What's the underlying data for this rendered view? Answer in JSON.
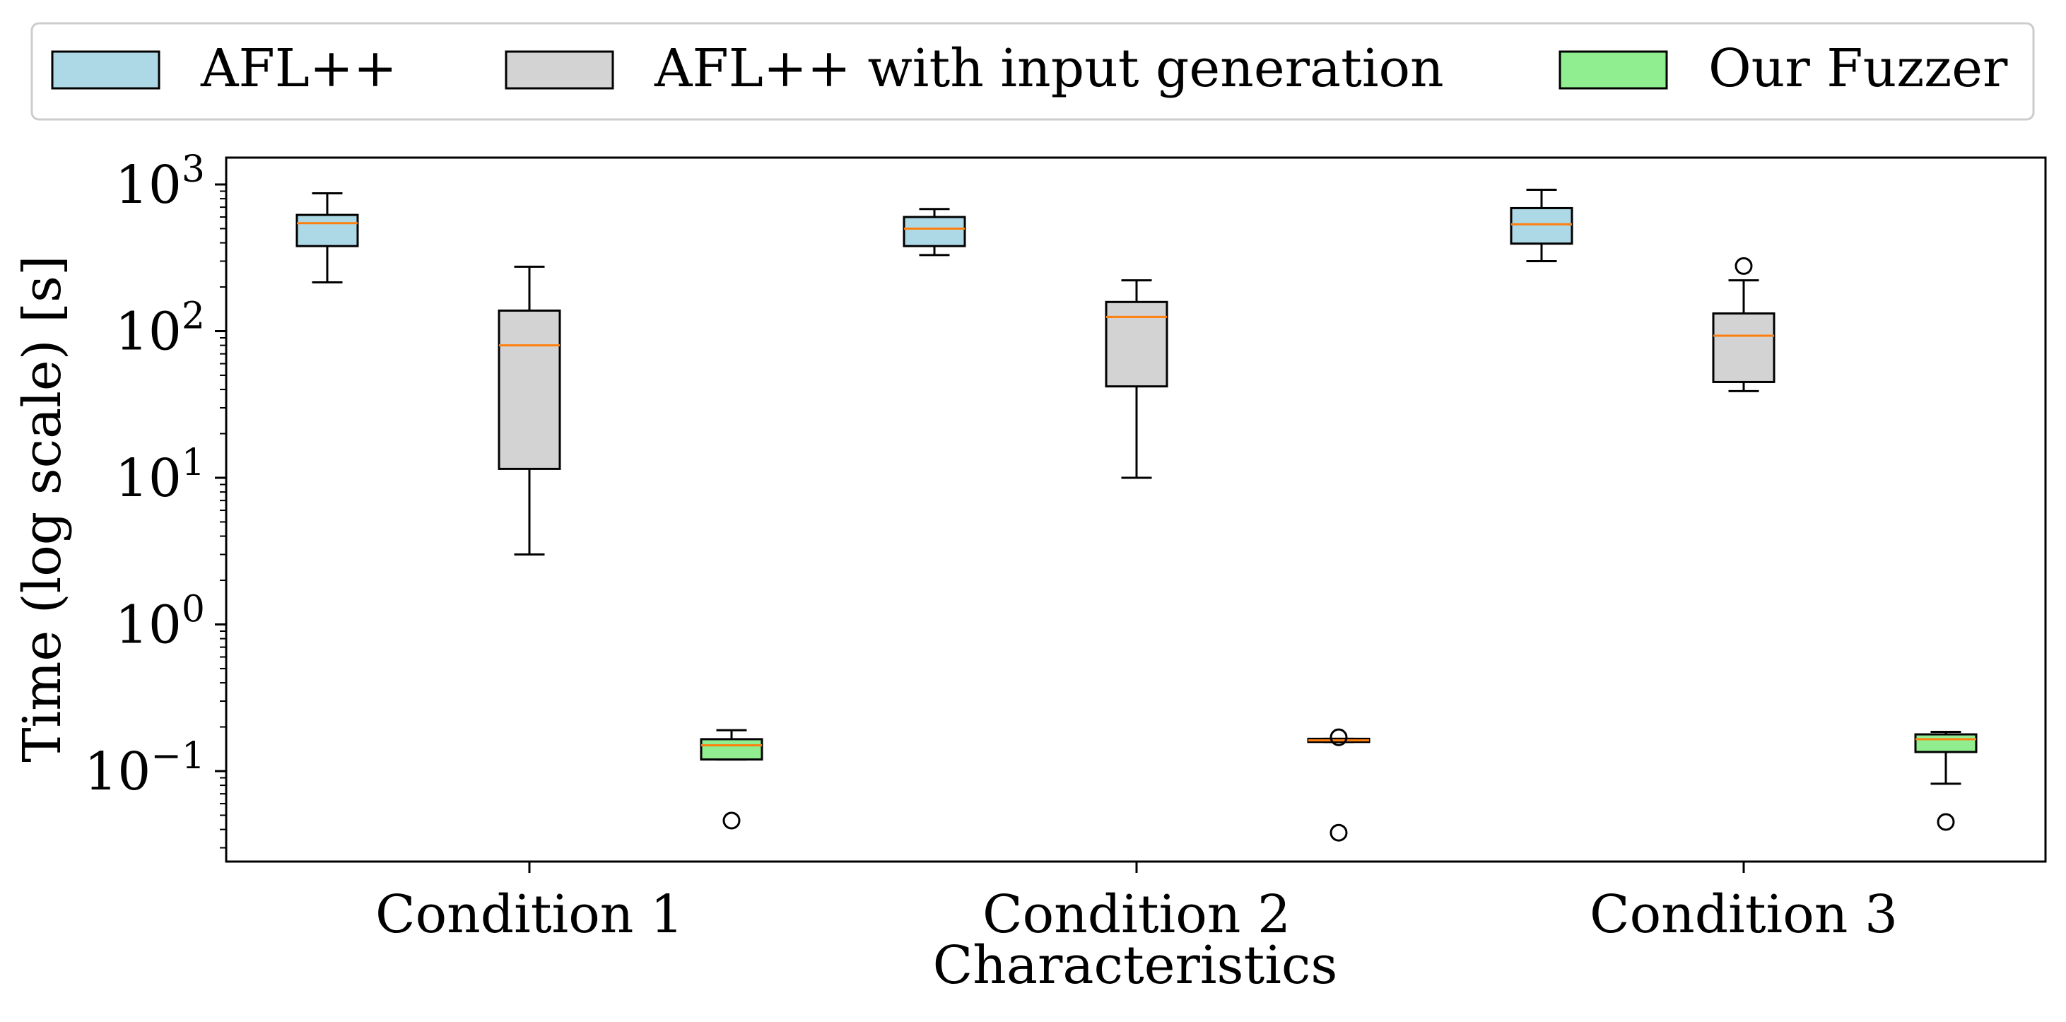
{
  "chart_data": {
    "type": "boxplot",
    "title": "",
    "xlabel": "Characteristics",
    "ylabel": "Time (log scale) [s]",
    "yscale": "log",
    "ylim": [
      0.025,
      1500
    ],
    "categories": [
      "Condition 1",
      "Condition 2",
      "Condition 3"
    ],
    "yticks": [
      {
        "value": 1000,
        "base": "10",
        "exp": "3"
      },
      {
        "value": 100,
        "base": "10",
        "exp": "2"
      },
      {
        "value": 10,
        "base": "10",
        "exp": "1"
      },
      {
        "value": 1,
        "base": "10",
        "exp": "0"
      },
      {
        "value": 0.1,
        "base": "10",
        "exp": "−1"
      }
    ],
    "legend_position": "top, above plot",
    "series": [
      {
        "name": "AFL++",
        "color": "#add8e6",
        "boxes": [
          {
            "whisker_low": 215,
            "q1": 380,
            "median": 545,
            "q3": 620,
            "whisker_high": 870,
            "outliers": []
          },
          {
            "whisker_low": 330,
            "q1": 380,
            "median": 500,
            "q3": 600,
            "whisker_high": 680,
            "outliers": []
          },
          {
            "whisker_low": 300,
            "q1": 395,
            "median": 535,
            "q3": 690,
            "whisker_high": 920,
            "outliers": []
          }
        ]
      },
      {
        "name": "AFL++ with input generation",
        "color": "#d3d3d3",
        "boxes": [
          {
            "whisker_low": 3.0,
            "q1": 11.5,
            "median": 80,
            "q3": 138,
            "whisker_high": 275,
            "outliers": []
          },
          {
            "whisker_low": 10.0,
            "q1": 42,
            "median": 125,
            "q3": 158,
            "whisker_high": 222,
            "outliers": []
          },
          {
            "whisker_low": 39,
            "q1": 45,
            "median": 93,
            "q3": 132,
            "whisker_high": 222,
            "outliers": [
              278
            ]
          }
        ]
      },
      {
        "name": "Our Fuzzer",
        "color": "#90ee90",
        "boxes": [
          {
            "whisker_low": 0.12,
            "q1": 0.12,
            "median": 0.15,
            "q3": 0.165,
            "whisker_high": 0.19,
            "outliers": [
              0.046
            ]
          },
          {
            "whisker_low": 0.158,
            "q1": 0.158,
            "median": 0.162,
            "q3": 0.166,
            "whisker_high": 0.166,
            "outliers": [
              0.038,
              0.17
            ]
          },
          {
            "whisker_low": 0.082,
            "q1": 0.135,
            "median": 0.165,
            "q3": 0.178,
            "whisker_high": 0.185,
            "outliers": [
              0.045
            ]
          }
        ]
      }
    ],
    "median_color": "#ff7f0e"
  }
}
